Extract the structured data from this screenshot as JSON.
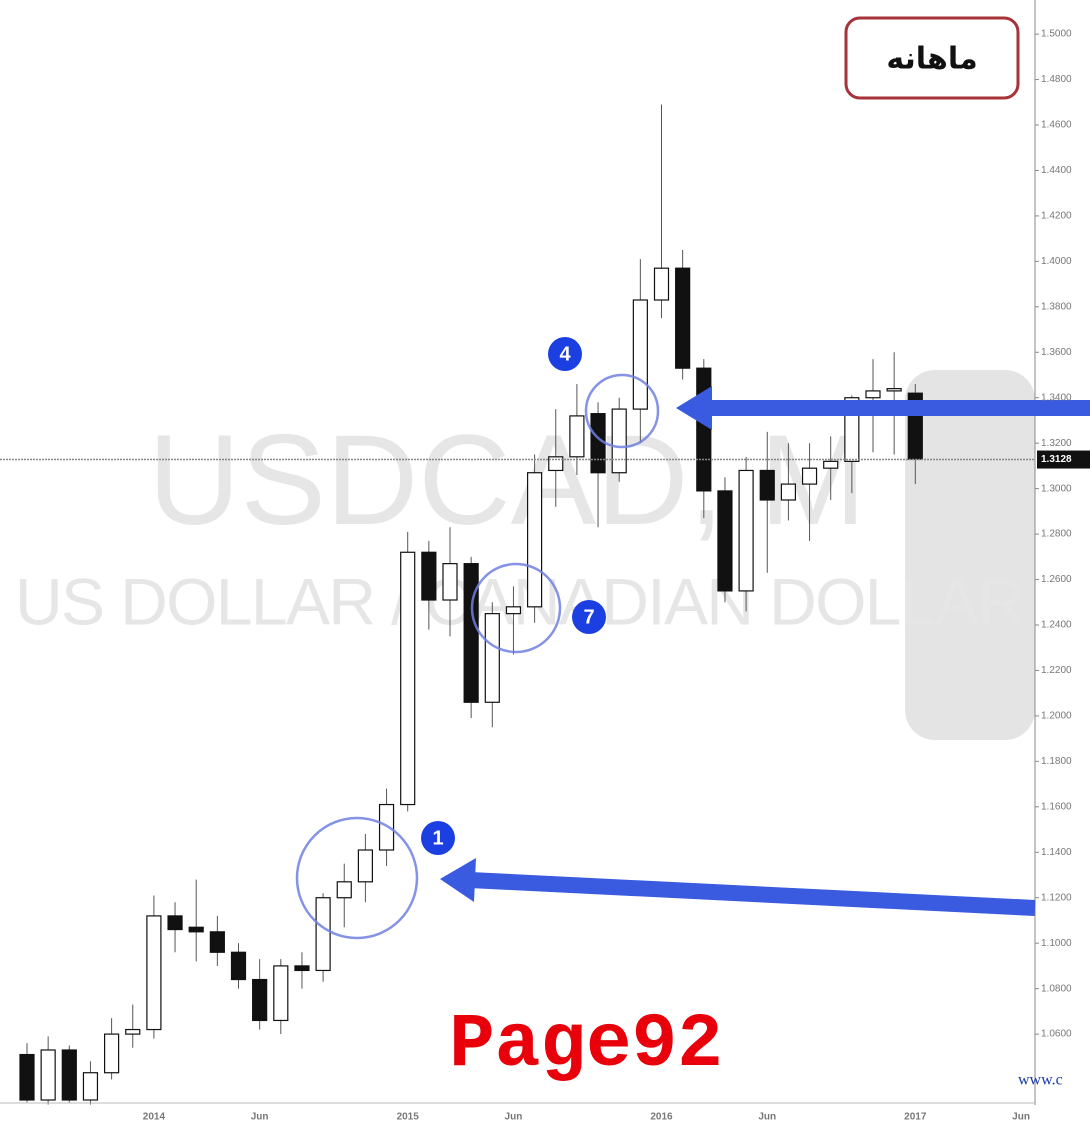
{
  "chart_data": {
    "type": "candlestick",
    "categories": [
      null,
      null,
      null,
      null,
      null,
      null,
      "2014",
      null,
      null,
      null,
      null,
      "Jun",
      null,
      null,
      null,
      null,
      null,
      null,
      "2015",
      null,
      null,
      null,
      null,
      "Jun",
      null,
      null,
      null,
      null,
      null,
      null,
      "2016",
      null,
      null,
      null,
      null,
      "Jun",
      null,
      null,
      null,
      null,
      null,
      null,
      "2017",
      null,
      null,
      null,
      null,
      "Jun"
    ],
    "open": [
      1.051,
      1.031,
      1.053,
      1.031,
      1.043,
      1.06,
      1.062,
      1.112,
      1.107,
      1.105,
      1.096,
      1.084,
      1.066,
      1.09,
      1.088,
      1.12,
      1.127,
      1.141,
      1.161,
      1.272,
      1.251,
      1.267,
      1.206,
      1.245,
      1.248,
      1.308,
      1.314,
      1.333,
      1.307,
      1.335,
      1.383,
      1.397,
      1.353,
      1.299,
      1.255,
      1.308,
      1.295,
      1.302,
      1.309,
      1.312,
      1.34,
      1.343,
      1.342,
      null,
      null,
      null,
      null,
      null
    ],
    "high": [
      1.056,
      1.059,
      1.055,
      1.048,
      1.067,
      1.073,
      1.121,
      1.118,
      1.128,
      1.112,
      1.1,
      1.093,
      1.093,
      1.096,
      1.122,
      1.135,
      1.148,
      1.168,
      1.281,
      1.277,
      1.283,
      1.27,
      1.25,
      1.257,
      1.315,
      1.335,
      1.346,
      1.338,
      1.34,
      1.401,
      1.469,
      1.405,
      1.357,
      1.305,
      1.314,
      1.325,
      1.32,
      1.32,
      1.323,
      1.341,
      1.357,
      1.36,
      1.346,
      null,
      null,
      null,
      null,
      null
    ],
    "low": [
      1.03,
      1.029,
      1.03,
      1.029,
      1.04,
      1.054,
      1.058,
      1.096,
      1.092,
      1.09,
      1.08,
      1.062,
      1.06,
      1.08,
      1.083,
      1.107,
      1.118,
      1.134,
      1.158,
      1.238,
      1.235,
      1.199,
      1.195,
      1.227,
      1.241,
      1.292,
      1.306,
      1.283,
      1.303,
      1.32,
      1.375,
      1.348,
      1.287,
      1.25,
      1.246,
      1.263,
      1.286,
      1.277,
      1.295,
      1.298,
      1.316,
      1.315,
      1.302,
      null,
      null,
      null,
      null,
      null
    ],
    "close": [
      1.031,
      1.053,
      1.031,
      1.043,
      1.06,
      1.062,
      1.112,
      1.106,
      1.105,
      1.096,
      1.084,
      1.066,
      1.09,
      1.088,
      1.12,
      1.127,
      1.141,
      1.161,
      1.272,
      1.251,
      1.267,
      1.206,
      1.245,
      1.248,
      1.307,
      1.314,
      1.332,
      1.307,
      1.335,
      1.383,
      1.397,
      1.353,
      1.299,
      1.255,
      1.308,
      1.295,
      1.302,
      1.309,
      1.312,
      1.34,
      1.343,
      1.344,
      1.313,
      null,
      null,
      null,
      null,
      null
    ],
    "up_color": "#ffffff",
    "down_color": "#111111",
    "ylim": [
      1.031,
      1.515
    ],
    "yticks": [
      {
        "value": 1.06,
        "label": "1.0600"
      },
      {
        "value": 1.08,
        "label": "1.0800"
      },
      {
        "value": 1.1,
        "label": "1.1000"
      },
      {
        "value": 1.12,
        "label": "1.1200"
      },
      {
        "value": 1.14,
        "label": "1.1400"
      },
      {
        "value": 1.16,
        "label": "1.1600"
      },
      {
        "value": 1.18,
        "label": "1.1800"
      },
      {
        "value": 1.2,
        "label": "1.2000"
      },
      {
        "value": 1.22,
        "label": "1.2200"
      },
      {
        "value": 1.24,
        "label": "1.2400"
      },
      {
        "value": 1.26,
        "label": "1.2600"
      },
      {
        "value": 1.28,
        "label": "1.2800"
      },
      {
        "value": 1.3,
        "label": "1.3000"
      },
      {
        "value": 1.32,
        "label": "1.3200"
      },
      {
        "value": 1.34,
        "label": "1.3400"
      },
      {
        "value": 1.36,
        "label": "1.3600"
      },
      {
        "value": 1.38,
        "label": "1.3800"
      },
      {
        "value": 1.4,
        "label": "1.4000"
      },
      {
        "value": 1.42,
        "label": "1.4200"
      },
      {
        "value": 1.44,
        "label": "1.4400"
      },
      {
        "value": 1.46,
        "label": "1.4600"
      },
      {
        "value": 1.48,
        "label": "1.4800"
      },
      {
        "value": 1.5,
        "label": "1.5000"
      }
    ],
    "current_price": 1.3128,
    "watermark": [
      "USDCAD, M",
      "US DOLLAR / CANADIAN DOLLAR"
    ],
    "label_box": "ماهانه",
    "markers": [
      "1",
      "4",
      "7"
    ],
    "footer": "Page92",
    "website": "www.c"
  }
}
